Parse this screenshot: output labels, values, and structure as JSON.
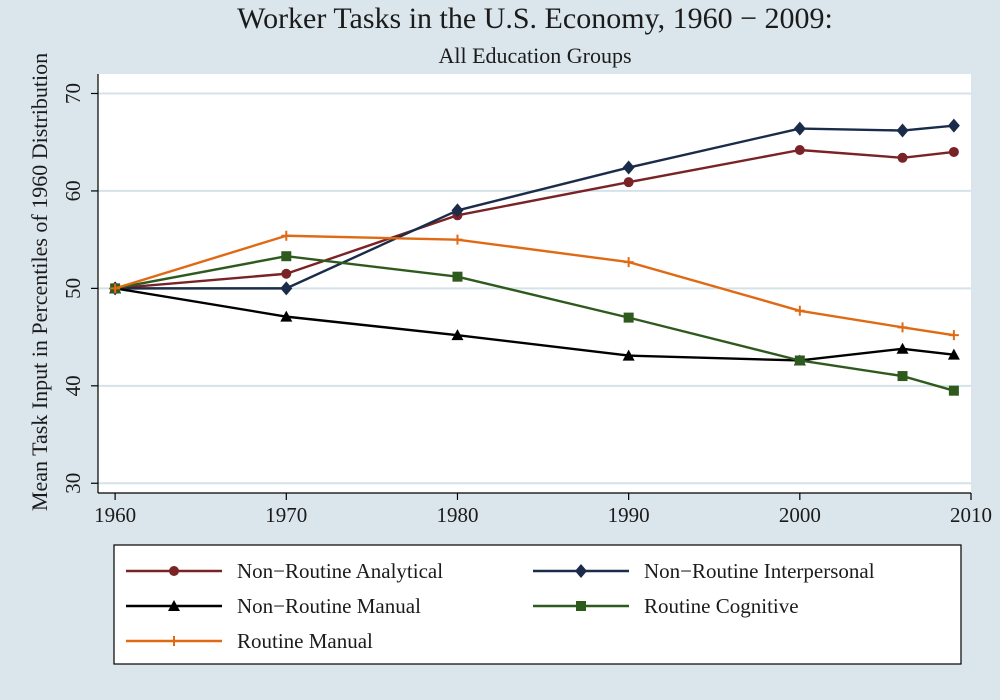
{
  "chart_data": {
    "type": "line",
    "title": "Worker Tasks in the U.S. Economy, 1960 − 2009:",
    "subtitle": "All Education Groups",
    "xlabel": "",
    "ylabel": "Mean Task Input in Percentiles of 1960 Distribution",
    "xlim": [
      1959,
      2010
    ],
    "ylim": [
      29,
      72
    ],
    "x_ticks": [
      1960,
      1970,
      1980,
      1990,
      2000,
      2010
    ],
    "y_ticks": [
      30,
      40,
      50,
      60,
      70
    ],
    "grid": true,
    "legend_position": "bottom",
    "x": [
      1960,
      1970,
      1980,
      1990,
      2000,
      2006,
      2009
    ],
    "series": [
      {
        "name": "Non−Routine Analytical",
        "color": "#7a2326",
        "marker": "circle",
        "values": [
          50.0,
          51.5,
          57.5,
          60.9,
          64.2,
          63.4,
          64.0
        ]
      },
      {
        "name": "Non−Routine Interpersonal",
        "color": "#1a2c4a",
        "marker": "diamond",
        "values": [
          50.0,
          50.0,
          58.0,
          62.4,
          66.4,
          66.2,
          66.7
        ]
      },
      {
        "name": "Non−Routine Manual",
        "color": "#000000",
        "marker": "triangle",
        "values": [
          50.0,
          47.1,
          45.2,
          43.1,
          42.6,
          43.8,
          43.2
        ]
      },
      {
        "name": "Routine Cognitive",
        "color": "#2f5a1e",
        "marker": "square",
        "values": [
          50.0,
          53.3,
          51.2,
          47.0,
          42.6,
          41.0,
          39.5
        ]
      },
      {
        "name": "Routine Manual",
        "color": "#e06a14",
        "marker": "plus",
        "values": [
          50.0,
          55.4,
          55.0,
          52.7,
          47.7,
          46.0,
          45.2
        ]
      }
    ]
  }
}
